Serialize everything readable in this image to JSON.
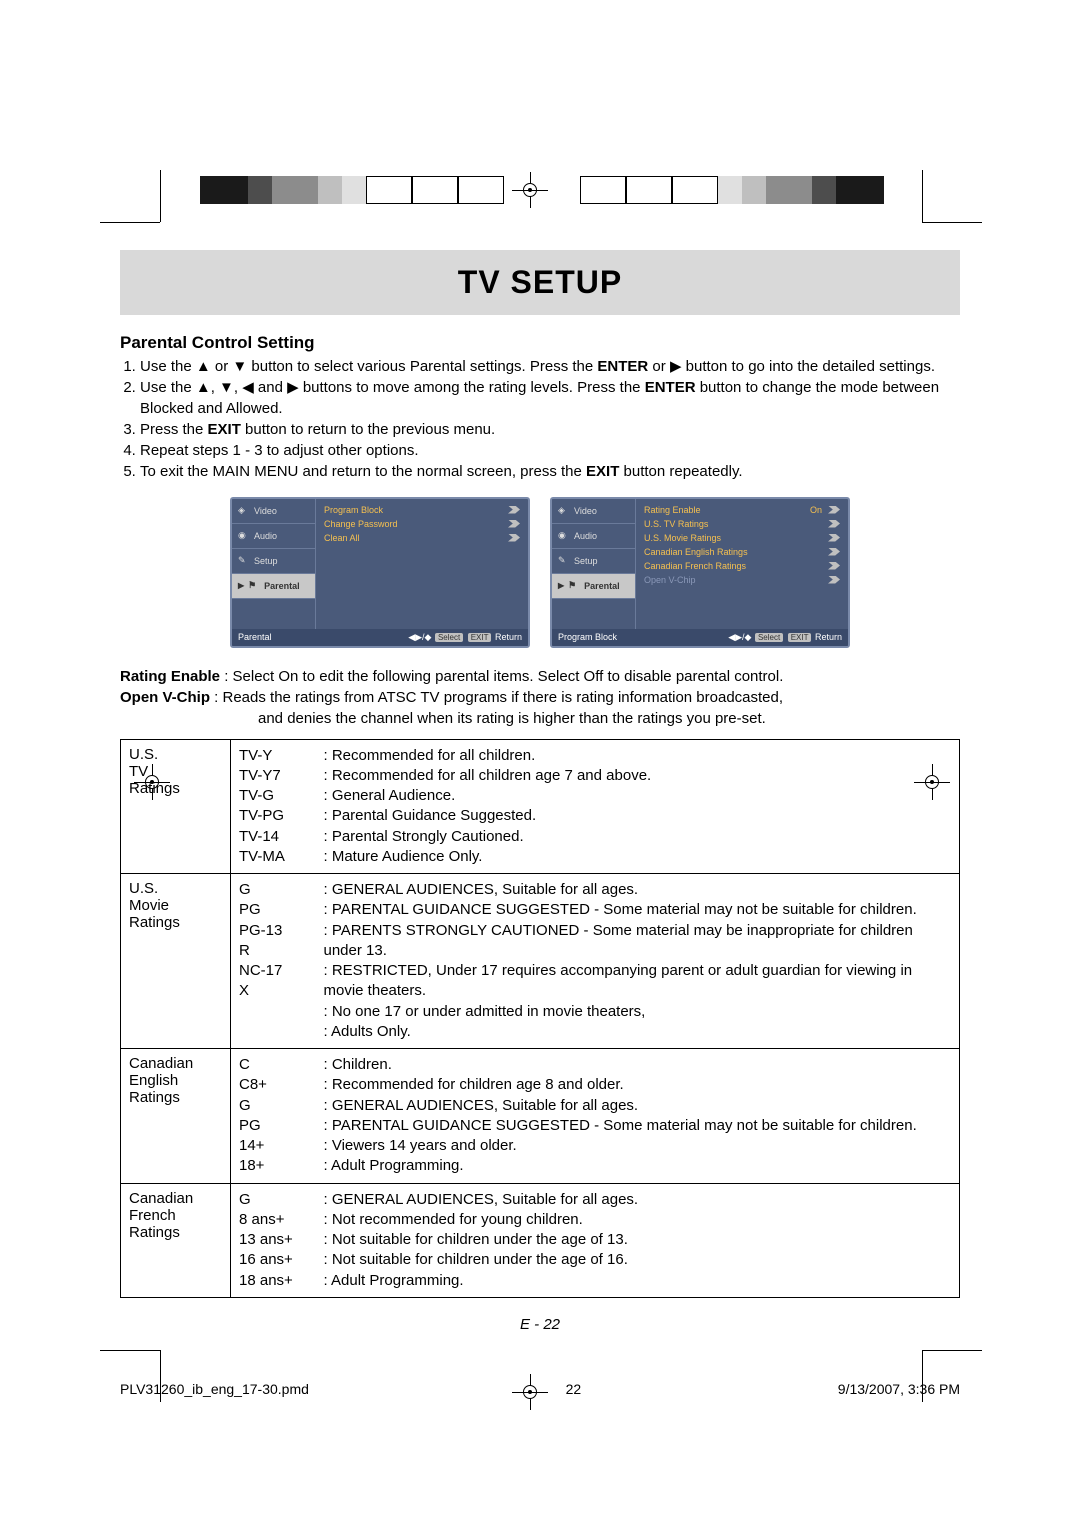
{
  "title": "TV SETUP",
  "section_title": "Parental Control Setting",
  "steps": [
    "Use the ▲ or ▼ button to select various Parental settings. Press the <b>ENTER</b> or ▶ button to go into the detailed settings.",
    "Use the ▲, ▼, ◀ and ▶ buttons to move among the rating levels. Press the <b>ENTER</b> button to change the mode between Blocked and Allowed.",
    "Press the <b>EXIT</b> button to return to the previous menu.",
    "Repeat steps 1 - 3 to adjust other options.",
    "To exit the MAIN MENU and return to the normal screen, press the <b>EXIT</b> button repeatedly."
  ],
  "osd_tabs": [
    "Video",
    "Audio",
    "Setup",
    "Parental"
  ],
  "osd1": {
    "footer_title": "Parental",
    "items": [
      {
        "label": "Program Block",
        "dim": false
      },
      {
        "label": "Change Password",
        "dim": false
      },
      {
        "label": "Clean All",
        "dim": false
      }
    ]
  },
  "osd2": {
    "footer_title": "Program Block",
    "items": [
      {
        "label": "Rating Enable",
        "value": "On",
        "dim": false
      },
      {
        "label": "U.S. TV Ratings",
        "dim": false
      },
      {
        "label": "U.S. Movie Ratings",
        "dim": false
      },
      {
        "label": "Canadian English Ratings",
        "dim": false
      },
      {
        "label": "Canadian French Ratings",
        "dim": false
      },
      {
        "label": "Open V-Chip",
        "dim": true
      }
    ]
  },
  "osd_footer_hint": "Select EXIT Return",
  "defs": {
    "rating_enable_label": "Rating Enable",
    "rating_enable_text": " : Select On to edit the following parental items. Select Off to disable parental control.",
    "vchip_label": "Open V-Chip",
    "vchip_text_line1": " : Reads the ratings from ATSC TV programs if there is rating information broadcasted,",
    "vchip_text_line2": "and denies the channel when its rating is higher than the ratings you pre-set."
  },
  "ratings": [
    {
      "system": "U.S. TV Ratings",
      "rows": [
        {
          "code": "TV-Y",
          "desc": "Recommended for all children."
        },
        {
          "code": "TV-Y7",
          "desc": "Recommended for all children age 7 and above."
        },
        {
          "code": "TV-G",
          "desc": "General Audience."
        },
        {
          "code": "TV-PG",
          "desc": "Parental Guidance Suggested."
        },
        {
          "code": "TV-14",
          "desc": "Parental Strongly Cautioned."
        },
        {
          "code": "TV-MA",
          "desc": "Mature Audience Only."
        }
      ]
    },
    {
      "system": "U.S. Movie Ratings",
      "rows": [
        {
          "code": "G",
          "desc": "GENERAL AUDIENCES, Suitable for all ages."
        },
        {
          "code": "PG",
          "desc": "PARENTAL GUIDANCE SUGGESTED - Some material may not be suitable for children."
        },
        {
          "code": "PG-13",
          "desc": "PARENTS STRONGLY CAUTIONED - Some material may be inappropriate for children under 13."
        },
        {
          "code": "R",
          "desc": "RESTRICTED, Under 17 requires accompanying parent or adult guardian for viewing in movie theaters."
        },
        {
          "code": "NC-17",
          "desc": "No one 17 or under admitted in movie theaters,"
        },
        {
          "code": "X",
          "desc": "Adults Only."
        }
      ]
    },
    {
      "system": "Canadian English Ratings",
      "rows": [
        {
          "code": "C",
          "desc": "Children."
        },
        {
          "code": "C8+",
          "desc": "Recommended for children age 8 and older."
        },
        {
          "code": "G",
          "desc": "GENERAL AUDIENCES, Suitable for all ages."
        },
        {
          "code": "PG",
          "desc": "PARENTAL GUIDANCE SUGGESTED - Some material may not be suitable for children."
        },
        {
          "code": "14+",
          "desc": "Viewers 14 years and older."
        },
        {
          "code": "18+",
          "desc": "Adult Programming."
        }
      ]
    },
    {
      "system": "Canadian French Ratings",
      "rows": [
        {
          "code": "G",
          "desc": "GENERAL AUDIENCES, Suitable for all ages."
        },
        {
          "code": "8 ans+",
          "desc": "Not recommended for young children."
        },
        {
          "code": "13 ans+",
          "desc": "Not suitable for children under the age of 13."
        },
        {
          "code": "16 ans+",
          "desc": "Not suitable for children under the age of 16."
        },
        {
          "code": "18 ans+",
          "desc": "Adult Programming."
        }
      ]
    }
  ],
  "page_number": "E - 22",
  "footer": {
    "file": "PLV31260_ib_eng_17-30.pmd",
    "page": "22",
    "date": "9/13/2007, 3:36 PM"
  },
  "colors": {
    "title_bg": "#d9d9d9",
    "osd_bg": "#4a5a7a",
    "osd_item": "#f5c050",
    "osd_dim": "#8a98b8"
  }
}
